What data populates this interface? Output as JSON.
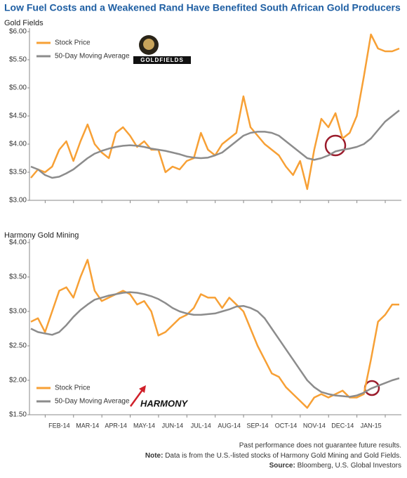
{
  "title": "Low Fuel Costs and a Weakened Rand Have Benefited South African Gold Producers",
  "footer": {
    "disclaimer": "Past performance does not guarantee future results.",
    "note_label": "Note:",
    "note": "Data is from the U.S.-listed stocks of Harmony Gold Mining and Gold Fields.",
    "source_label": "Source:",
    "source": "Bloomberg, U.S. Global Investors"
  },
  "chart_data": [
    {
      "type": "line",
      "title": "Gold Fields",
      "logo": "GOLDFIELDS",
      "legend": "upper left",
      "grid": false,
      "ylim": [
        3.0,
        6.0
      ],
      "yticks": [
        {
          "value": 3.0,
          "label": "$3.00"
        },
        {
          "value": 3.5,
          "label": "$3.50"
        },
        {
          "value": 4.0,
          "label": "$4.00"
        },
        {
          "value": 4.5,
          "label": "$4.50"
        },
        {
          "value": 5.0,
          "label": "$5.00"
        },
        {
          "value": 5.5,
          "label": "$5.50"
        },
        {
          "value": 6.0,
          "label": "$6.00"
        }
      ],
      "series": [
        {
          "name": "Stock Price",
          "color": "#f7a035",
          "values": [
            3.4,
            3.55,
            3.5,
            3.6,
            3.9,
            4.05,
            3.7,
            4.05,
            4.35,
            4.0,
            3.85,
            3.75,
            4.2,
            4.3,
            4.15,
            3.95,
            4.05,
            3.9,
            3.9,
            3.5,
            3.6,
            3.55,
            3.7,
            3.75,
            4.2,
            3.9,
            3.8,
            4.0,
            4.1,
            4.2,
            4.85,
            4.3,
            4.15,
            4.0,
            3.9,
            3.8,
            3.6,
            3.45,
            3.7,
            3.2,
            3.9,
            4.45,
            4.3,
            4.55,
            4.1,
            4.2,
            4.5,
            5.2,
            5.95,
            5.7,
            5.65,
            5.65,
            5.7
          ]
        },
        {
          "name": "50-Day Moving Average",
          "color": "#8c8c8c",
          "values": [
            3.6,
            3.55,
            3.45,
            3.4,
            3.42,
            3.48,
            3.55,
            3.65,
            3.75,
            3.83,
            3.88,
            3.92,
            3.95,
            3.97,
            3.98,
            3.97,
            3.95,
            3.92,
            3.9,
            3.88,
            3.85,
            3.82,
            3.78,
            3.76,
            3.75,
            3.76,
            3.8,
            3.85,
            3.95,
            4.05,
            4.15,
            4.2,
            4.22,
            4.22,
            4.2,
            4.15,
            4.05,
            3.95,
            3.85,
            3.75,
            3.72,
            3.75,
            3.8,
            3.87,
            3.9,
            3.92,
            3.95,
            4.0,
            4.1,
            4.25,
            4.4,
            4.5,
            4.6
          ]
        }
      ]
    },
    {
      "type": "line",
      "title": "Harmony Gold Mining",
      "logo": "HARMONY",
      "legend": "lower left",
      "grid": false,
      "categories": [
        null,
        null,
        null,
        null,
        "FEB-14",
        null,
        null,
        null,
        "MAR-14",
        null,
        null,
        null,
        "APR-14",
        null,
        null,
        null,
        "MAY-14",
        null,
        null,
        null,
        "JUN-14",
        null,
        null,
        null,
        "JUL-14",
        null,
        null,
        null,
        "AUG-14",
        null,
        null,
        null,
        "SEP-14",
        null,
        null,
        null,
        "OCT-14",
        null,
        null,
        null,
        "NOV-14",
        null,
        null,
        null,
        "DEC-14",
        null,
        null,
        null,
        "JAN-15",
        null,
        null,
        null,
        null
      ],
      "ylim": [
        1.5,
        4.0
      ],
      "yticks": [
        {
          "value": 1.5,
          "label": "$1.50"
        },
        {
          "value": 2.0,
          "label": "$2.00"
        },
        {
          "value": 2.5,
          "label": "$2.50"
        },
        {
          "value": 3.0,
          "label": "$3.00"
        },
        {
          "value": 3.5,
          "label": "$3.50"
        },
        {
          "value": 4.0,
          "label": "$4.00"
        }
      ],
      "series": [
        {
          "name": "Stock Price",
          "color": "#f7a035",
          "values": [
            2.85,
            2.9,
            2.7,
            3.0,
            3.3,
            3.35,
            3.2,
            3.5,
            3.75,
            3.3,
            3.15,
            3.2,
            3.25,
            3.3,
            3.25,
            3.1,
            3.15,
            3.0,
            2.65,
            2.7,
            2.8,
            2.9,
            2.95,
            3.05,
            3.25,
            3.2,
            3.2,
            3.05,
            3.2,
            3.1,
            3.0,
            2.75,
            2.5,
            2.3,
            2.1,
            2.05,
            1.9,
            1.8,
            1.7,
            1.6,
            1.75,
            1.8,
            1.75,
            1.8,
            1.85,
            1.75,
            1.75,
            1.8,
            2.3,
            2.85,
            2.95,
            3.1,
            3.1
          ]
        },
        {
          "name": "50-Day Moving Average",
          "color": "#8c8c8c",
          "values": [
            2.75,
            2.7,
            2.68,
            2.66,
            2.7,
            2.8,
            2.92,
            3.02,
            3.1,
            3.17,
            3.2,
            3.23,
            3.25,
            3.27,
            3.28,
            3.27,
            3.25,
            3.22,
            3.18,
            3.12,
            3.05,
            3.0,
            2.97,
            2.95,
            2.95,
            2.96,
            2.97,
            3.0,
            3.03,
            3.07,
            3.08,
            3.05,
            3.0,
            2.9,
            2.75,
            2.6,
            2.45,
            2.3,
            2.15,
            2.0,
            1.9,
            1.83,
            1.8,
            1.78,
            1.77,
            1.76,
            1.78,
            1.82,
            1.88,
            1.92,
            1.96,
            2.0,
            2.03
          ]
        }
      ]
    }
  ]
}
